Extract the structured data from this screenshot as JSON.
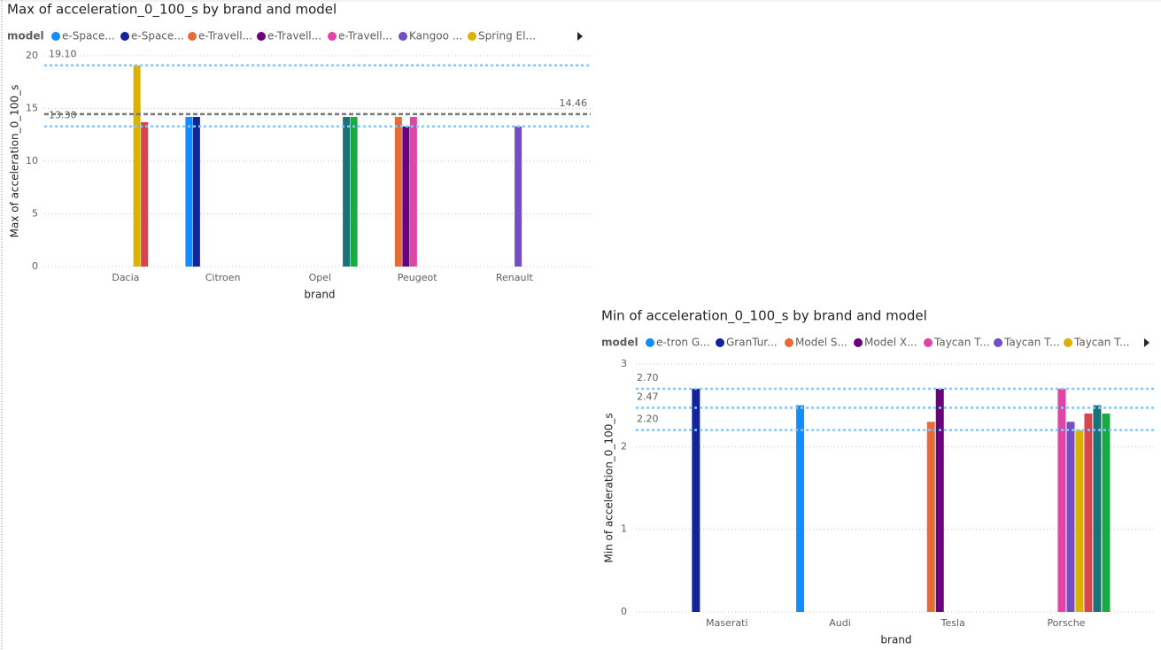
{
  "chart_data": [
    {
      "type": "bar",
      "title": "Max of acceleration_0_100_s by brand and model",
      "legend_title": "model",
      "x_label": "brand",
      "y_label": "Max of acceleration_0_100_s",
      "categories": [
        "Dacia",
        "Citroen",
        "Opel",
        "Peugeot",
        "Renault"
      ],
      "ylim": [
        0,
        20
      ],
      "yticks": [
        0,
        5,
        10,
        15,
        20
      ],
      "grid": true,
      "series": [
        {
          "name": "e-Space...",
          "color": "#118DFF",
          "values": [
            null,
            14.2,
            null,
            null,
            null
          ]
        },
        {
          "name": "e-Space...",
          "color": "#12239E",
          "values": [
            null,
            14.2,
            null,
            null,
            null
          ]
        },
        {
          "name": "e-Travell...",
          "color": "#E66C37",
          "values": [
            null,
            null,
            null,
            14.2,
            null
          ]
        },
        {
          "name": "e-Travell...",
          "color": "#6B007B",
          "values": [
            null,
            null,
            null,
            13.3,
            null
          ]
        },
        {
          "name": "e-Travell...",
          "color": "#E044A7",
          "values": [
            null,
            null,
            null,
            14.2,
            null
          ]
        },
        {
          "name": "Kangoo ...",
          "color": "#744EC2",
          "values": [
            null,
            null,
            null,
            null,
            13.3
          ]
        },
        {
          "name": "Spring El...",
          "color": "#D9B300",
          "values": [
            19.1,
            null,
            null,
            null,
            null
          ]
        },
        {
          "name": null,
          "color": "#D64550",
          "values": [
            13.7,
            null,
            null,
            null,
            null
          ]
        },
        {
          "name": null,
          "color": "#197278",
          "values": [
            null,
            null,
            14.2,
            null,
            null
          ]
        },
        {
          "name": null,
          "color": "#1AAB40",
          "values": [
            null,
            null,
            14.2,
            null,
            null
          ]
        }
      ],
      "reference_lines": [
        {
          "value": 19.1,
          "label": "19.10",
          "color": "#8CC4F5",
          "style": "dotted"
        },
        {
          "value": 13.3,
          "label": "13.30",
          "color": "#8CC4F5",
          "style": "dotted"
        },
        {
          "value": 14.46,
          "label": "14.46",
          "color": "#777777",
          "style": "dashed"
        }
      ]
    },
    {
      "type": "bar",
      "title": "Min of acceleration_0_100_s by brand and model",
      "legend_title": "model",
      "x_label": "brand",
      "y_label": "Min of acceleration_0_100_s",
      "categories": [
        "Maserati",
        "Audi",
        "Tesla",
        "Porsche"
      ],
      "ylim": [
        0,
        3
      ],
      "yticks": [
        0,
        1,
        2,
        3
      ],
      "grid": true,
      "series": [
        {
          "name": "e-tron G...",
          "color": "#118DFF",
          "values": [
            null,
            2.5,
            null,
            null
          ]
        },
        {
          "name": "GranTur...",
          "color": "#12239E",
          "values": [
            2.7,
            null,
            null,
            null
          ]
        },
        {
          "name": "Model S...",
          "color": "#E66C37",
          "values": [
            null,
            null,
            2.3,
            null
          ]
        },
        {
          "name": "Model X...",
          "color": "#6B007B",
          "values": [
            null,
            null,
            2.7,
            null
          ]
        },
        {
          "name": "Taycan T...",
          "color": "#E044A7",
          "values": [
            null,
            null,
            null,
            2.7
          ]
        },
        {
          "name": "Taycan T...",
          "color": "#744EC2",
          "values": [
            null,
            null,
            null,
            2.3
          ]
        },
        {
          "name": "Taycan T...",
          "color": "#D9B300",
          "values": [
            null,
            null,
            null,
            2.2
          ]
        },
        {
          "name": null,
          "color": "#D64550",
          "values": [
            null,
            null,
            null,
            2.4
          ]
        },
        {
          "name": null,
          "color": "#197278",
          "values": [
            null,
            null,
            null,
            2.5
          ]
        },
        {
          "name": null,
          "color": "#1AAB40",
          "values": [
            null,
            null,
            null,
            2.4
          ]
        }
      ],
      "reference_lines": [
        {
          "value": 2.7,
          "label": "2.70",
          "color": "#8CC4F5",
          "style": "dotted"
        },
        {
          "value": 2.47,
          "label": "2.47",
          "color": "#8CC4F5",
          "style": "dotted"
        },
        {
          "value": 2.2,
          "label": "2.20",
          "color": "#8CC4F5",
          "style": "dotted"
        }
      ]
    }
  ]
}
